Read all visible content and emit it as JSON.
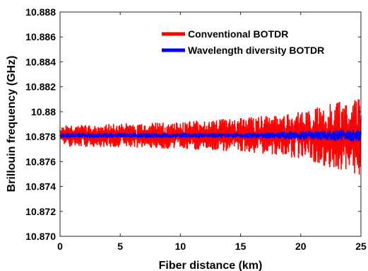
{
  "chart_data": {
    "type": "line",
    "xlabel": "Fiber distance (km)",
    "ylabel": "Brillouin frequency (GHz)",
    "xlim": [
      0,
      25
    ],
    "ylim": [
      10.87,
      10.888
    ],
    "x_ticks": [
      0,
      5,
      10,
      15,
      20,
      25
    ],
    "x_tick_labels": [
      "0",
      "5",
      "10",
      "15",
      "20",
      "25"
    ],
    "y_ticks": [
      10.87,
      10.872,
      10.874,
      10.876,
      10.878,
      10.88,
      10.882,
      10.884,
      10.886,
      10.888
    ],
    "y_tick_labels": [
      "10.870",
      "10.872",
      "10.874",
      "10.876",
      "10.878",
      "10.88",
      "10.882",
      "10.884",
      "10.886",
      "10.888"
    ],
    "grid": false,
    "legend_position": "top-right",
    "series": [
      {
        "name": "Conventional BOTDR",
        "color": "#ff0000",
        "mean": 10.8781,
        "x_range": [
          0,
          25
        ],
        "envelope_lower": [
          {
            "x": 0,
            "y": 10.8772
          },
          {
            "x": 10,
            "y": 10.877
          },
          {
            "x": 15,
            "y": 10.8768
          },
          {
            "x": 20,
            "y": 10.8762
          },
          {
            "x": 25,
            "y": 10.8748
          }
        ],
        "envelope_upper": [
          {
            "x": 0,
            "y": 10.8789
          },
          {
            "x": 10,
            "y": 10.8792
          },
          {
            "x": 15,
            "y": 10.8795
          },
          {
            "x": 20,
            "y": 10.88
          },
          {
            "x": 25,
            "y": 10.8813
          }
        ]
      },
      {
        "name": "Wavelength diversity BOTDR",
        "color": "#0000ff",
        "mean": 10.8781,
        "x_range": [
          0,
          25
        ],
        "envelope_lower": [
          {
            "x": 0,
            "y": 10.8779
          },
          {
            "x": 15,
            "y": 10.8779
          },
          {
            "x": 25,
            "y": 10.8776
          }
        ],
        "envelope_upper": [
          {
            "x": 0,
            "y": 10.8783
          },
          {
            "x": 15,
            "y": 10.8783
          },
          {
            "x": 25,
            "y": 10.8786
          }
        ]
      }
    ]
  }
}
